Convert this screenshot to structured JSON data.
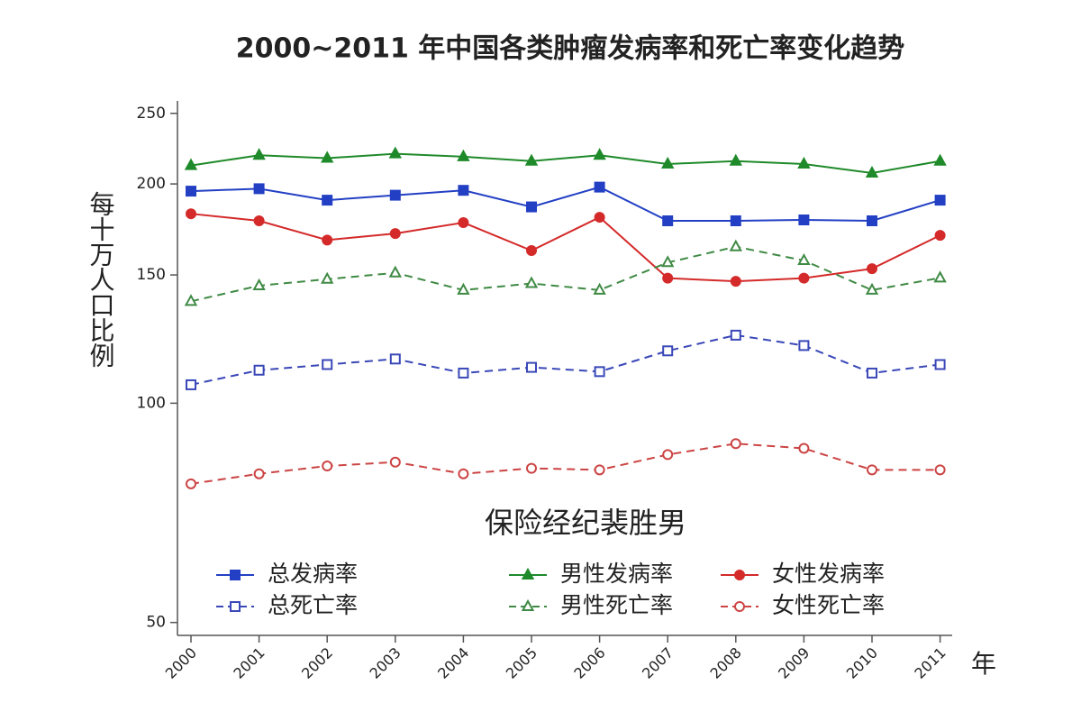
{
  "chart_data": {
    "type": "line",
    "title": "2000~2011 年中国各类肿瘤发病率和死亡率变化趋势",
    "y_label": "每十万人口比例",
    "x_label": "年",
    "annotation": "保险经纪裴胜男",
    "categories": [
      "2000",
      "2001",
      "2002",
      "2003",
      "2004",
      "2005",
      "2006",
      "2007",
      "2008",
      "2009",
      "2010",
      "2011"
    ],
    "log_scale": true,
    "ylim": [
      48,
      260
    ],
    "yticks": [
      50,
      100,
      150,
      200,
      250
    ],
    "series": [
      {
        "name": "总发病率",
        "color": "#2340c4",
        "marker": "square",
        "filled": true,
        "dashed": false,
        "values": [
          195.5,
          197,
          190,
          193,
          196,
          186,
          198,
          178,
          178,
          178.5,
          178,
          190
        ]
      },
      {
        "name": "男性发病率",
        "color": "#1f8a2a",
        "marker": "triangle",
        "filled": true,
        "dashed": false,
        "values": [
          212,
          219,
          217,
          220,
          218,
          215,
          219,
          213,
          215,
          213,
          207,
          215
        ]
      },
      {
        "name": "女性发病率",
        "color": "#d42a2a",
        "marker": "circle",
        "filled": true,
        "dashed": false,
        "values": [
          182,
          178,
          167.5,
          171,
          177,
          162,
          180,
          148.5,
          147,
          148.5,
          153,
          170
        ]
      },
      {
        "name": "总死亡率",
        "color": "#3a48b8",
        "marker": "square",
        "filled": false,
        "dashed": true,
        "values": [
          106,
          111,
          113,
          115,
          110,
          112,
          110.5,
          118,
          124,
          120,
          110,
          113
        ]
      },
      {
        "name": "男性死亡率",
        "color": "#3f8a44",
        "marker": "triangle",
        "filled": false,
        "dashed": true,
        "values": [
          138,
          145,
          148,
          151,
          143,
          146,
          143,
          156,
          164,
          157,
          143,
          148.6
        ]
      },
      {
        "name": "女性死亡率",
        "color": "#cc4444",
        "marker": "circle",
        "filled": false,
        "dashed": true,
        "values": [
          77.5,
          80,
          82,
          83,
          80,
          81.4,
          81,
          85,
          88,
          86.7,
          81,
          81
        ]
      }
    ]
  }
}
